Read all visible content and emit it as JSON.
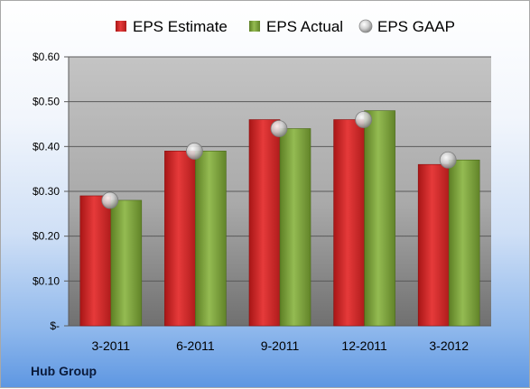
{
  "company": "Hub Group",
  "colors": {
    "estimate": "#d42a2a",
    "actual": "#7a9f3a",
    "gaap": "#c9c9c9"
  },
  "chart_data": {
    "type": "bar",
    "categories": [
      "3-2011",
      "6-2011",
      "9-2011",
      "12-2011",
      "3-2012"
    ],
    "series": [
      {
        "name": "EPS Estimate",
        "type": "bar",
        "values": [
          0.29,
          0.39,
          0.46,
          0.46,
          0.36
        ]
      },
      {
        "name": "EPS Actual",
        "type": "bar",
        "values": [
          0.28,
          0.39,
          0.44,
          0.48,
          0.37
        ]
      },
      {
        "name": "EPS GAAP",
        "type": "scatter",
        "values": [
          0.28,
          0.39,
          0.44,
          0.46,
          0.37
        ]
      }
    ],
    "ylim": [
      0,
      0.6
    ],
    "yticks": [
      0,
      0.1,
      0.2,
      0.3,
      0.4,
      0.5,
      0.6
    ],
    "ytick_labels": [
      "$-",
      "$0.10",
      "$0.20",
      "$0.30",
      "$0.40",
      "$0.50",
      "$0.60"
    ],
    "legend_position": "top",
    "grid": true
  }
}
